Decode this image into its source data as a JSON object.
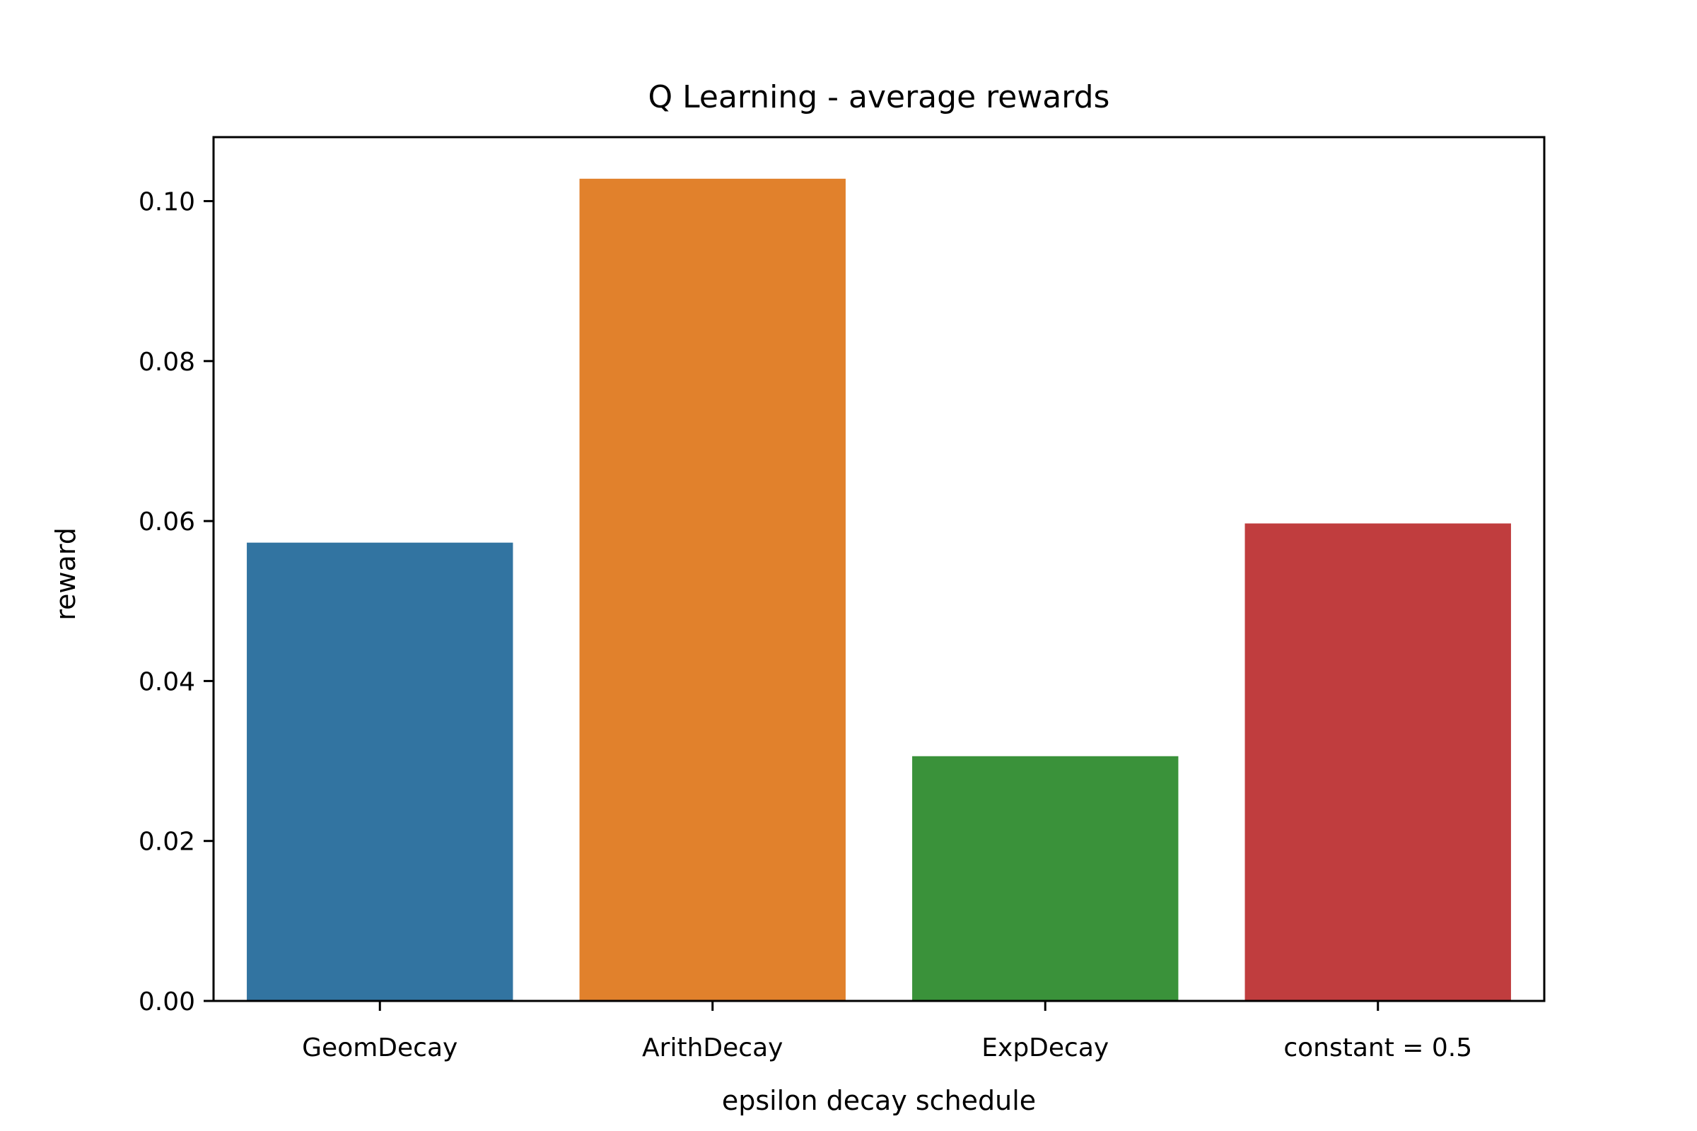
{
  "chart_data": {
    "type": "bar",
    "title": "Q Learning - average rewards",
    "xlabel": "epsilon decay schedule",
    "ylabel": "reward",
    "categories": [
      "GeomDecay",
      "ArithDecay",
      "ExpDecay",
      "constant = 0.5"
    ],
    "values": [
      0.0573,
      0.1028,
      0.0306,
      0.0597
    ],
    "colors": [
      "#3274a1",
      "#e1812c",
      "#3a923a",
      "#c03d3e"
    ],
    "ylim": [
      0,
      0.108
    ],
    "yticks": [
      "0.00",
      "0.02",
      "0.04",
      "0.06",
      "0.08",
      "0.10"
    ],
    "grid": false,
    "legend": "none"
  }
}
